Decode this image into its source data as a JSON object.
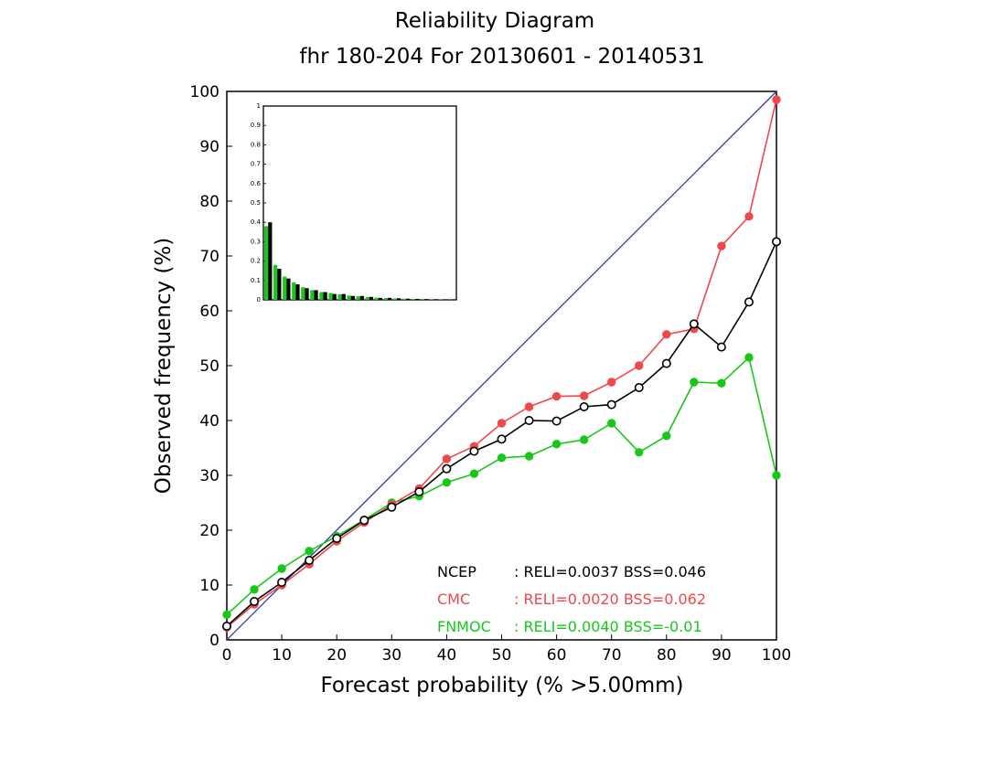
{
  "chart_data": {
    "type": "line",
    "title": "Reliability Diagram",
    "subtitle": "fhr 180-204 For 20130601 - 20140531",
    "xlabel": "Forecast probability (% >5.00mm)",
    "ylabel": "Observed frequency (%)",
    "xlim": [
      0,
      100
    ],
    "ylim": [
      0,
      100
    ],
    "xticks": [
      "0",
      "10",
      "20",
      "30",
      "40",
      "50",
      "60",
      "70",
      "80",
      "90",
      "100"
    ],
    "yticks": [
      "0",
      "10",
      "20",
      "30",
      "40",
      "50",
      "60",
      "70",
      "80",
      "90",
      "100"
    ],
    "diagonal_color": "#2f3eaa",
    "x": [
      0,
      5,
      10,
      15,
      20,
      25,
      30,
      35,
      40,
      45,
      50,
      55,
      60,
      65,
      70,
      75,
      80,
      85,
      90,
      95,
      100
    ],
    "series": [
      {
        "name": "NCEP",
        "color": "#000000",
        "marker": "open-circle",
        "values": [
          2.5,
          7,
          10.5,
          14.5,
          18.5,
          21.8,
          24.2,
          27,
          31.2,
          34.4,
          36.6,
          40,
          39.9,
          42.5,
          42.9,
          46,
          50.4,
          57.6,
          53.4,
          61.6,
          72.6
        ],
        "stats_label": "NCEP       : RELI=0.0037  BSS=0.046"
      },
      {
        "name": "CMC",
        "color": "#f04848",
        "marker": "filled-circle",
        "values": [
          2.3,
          6.5,
          10,
          13.8,
          18,
          21.4,
          24.7,
          27.6,
          33,
          35.3,
          39.5,
          42.5,
          44.4,
          44.5,
          47,
          50,
          55.7,
          56.7,
          71.8,
          77.2,
          98.5
        ],
        "stats_label": "CMC        : RELI=0.0020  BSS=0.062"
      },
      {
        "name": "FNMOC",
        "color": "#18c818",
        "marker": "filled-circle",
        "values": [
          4.6,
          9.2,
          13,
          16.2,
          18.9,
          21.9,
          25,
          26.2,
          28.7,
          30.3,
          33.2,
          33.5,
          35.7,
          36.5,
          39.5,
          34.2,
          37.2,
          47,
          46.8,
          51.5,
          30
        ]
      }
    ],
    "legend": [
      {
        "name": "NCEP",
        "text": ": RELI=0.0037  BSS=0.046",
        "color": "#000000"
      },
      {
        "name": "CMC",
        "text": ": RELI=0.0020  BSS=0.062",
        "color": "#f04848"
      },
      {
        "name": "FNMOC",
        "text": ": RELI=0.0040  BSS=-0.01",
        "color": "#18c818"
      }
    ],
    "inset": {
      "type": "bar",
      "ylim": [
        0,
        1
      ],
      "yticks": [
        "0",
        "0.1",
        "0.2",
        "0.3",
        "0.4",
        "0.5",
        "0.6",
        "0.7",
        "0.8",
        "0.9",
        "1"
      ],
      "black_values": [
        0.4,
        0.16,
        0.11,
        0.08,
        0.06,
        0.05,
        0.04,
        0.03,
        0.03,
        0.02,
        0.02,
        0.015,
        0.01,
        0.01,
        0.008,
        0.006,
        0.005,
        0.004,
        0.003,
        0.002,
        0.001
      ],
      "green_values": [
        0.38,
        0.18,
        0.12,
        0.09,
        0.065,
        0.05,
        0.04,
        0.035,
        0.028,
        0.022,
        0.018,
        0.014,
        0.011,
        0.009,
        0.007,
        0.006,
        0.005,
        0.004,
        0.003,
        0.002,
        0.001
      ]
    }
  }
}
